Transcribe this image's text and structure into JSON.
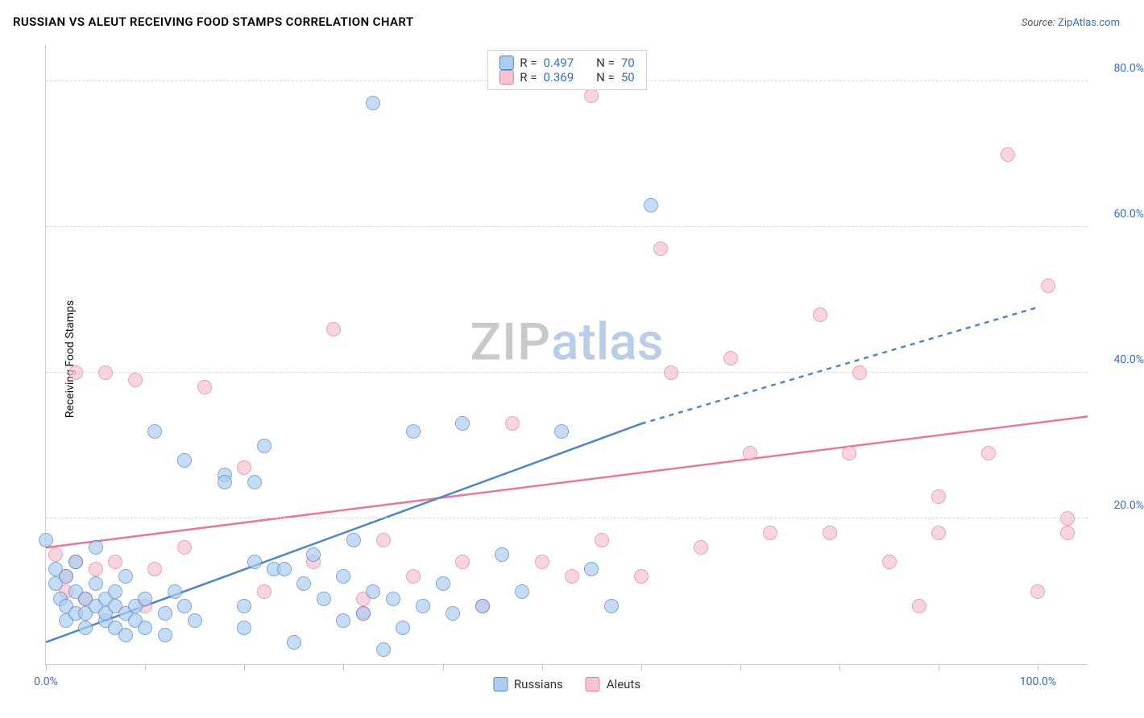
{
  "title": "RUSSIAN VS ALEUT RECEIVING FOOD STAMPS CORRELATION CHART",
  "source": {
    "label": "Source:",
    "value": "ZipAtlas.com"
  },
  "ylabel": "Receiving Food Stamps",
  "watermark": {
    "a": "ZIP",
    "b": "atlas"
  },
  "chart": {
    "type": "scatter",
    "xlim": [
      0,
      105
    ],
    "ylim": [
      0,
      85
    ],
    "xticks_major": [
      0,
      100
    ],
    "xtick_labels": [
      "0.0%",
      "100.0%"
    ],
    "xticks_minor": [
      10,
      20,
      30,
      40,
      50,
      60,
      70,
      80,
      90
    ],
    "yticks": [
      20,
      40,
      60,
      80
    ],
    "ytick_labels": [
      "20.0%",
      "40.0%",
      "60.0%",
      "80.0%"
    ],
    "grid_color": "#d9d9d9",
    "axis_color": "#cfcfcf",
    "tick_label_color": "#3a6fb7",
    "background_color": "#ffffff",
    "marker_radius": 9,
    "marker_stroke_width": 1.5,
    "marker_fill_opacity": 0.35,
    "trend_line_width": 2.5,
    "series": {
      "russians": {
        "label": "Russians",
        "color_stroke": "#4f86c6",
        "color_fill": "#aecdf0",
        "R": "0.497",
        "N": "70",
        "trend": {
          "x1": 0,
          "y1": 3,
          "x2": 60,
          "y2": 33,
          "dash_from_x": 60,
          "dash_to_x": 100,
          "dash_to_y": 49
        },
        "points": [
          [
            0,
            17
          ],
          [
            1,
            13
          ],
          [
            1,
            11
          ],
          [
            1.5,
            9
          ],
          [
            2,
            8
          ],
          [
            2,
            12
          ],
          [
            2,
            6
          ],
          [
            3,
            14
          ],
          [
            3,
            7
          ],
          [
            3,
            10
          ],
          [
            4,
            9
          ],
          [
            4,
            5
          ],
          [
            4,
            7
          ],
          [
            5,
            8
          ],
          [
            5,
            11
          ],
          [
            5,
            16
          ],
          [
            6,
            6
          ],
          [
            6,
            9
          ],
          [
            6,
            7
          ],
          [
            7,
            8
          ],
          [
            7,
            5
          ],
          [
            7,
            10
          ],
          [
            8,
            4
          ],
          [
            8,
            7
          ],
          [
            8,
            12
          ],
          [
            9,
            8
          ],
          [
            9,
            6
          ],
          [
            10,
            5
          ],
          [
            10,
            9
          ],
          [
            11,
            32
          ],
          [
            12,
            7
          ],
          [
            12,
            4
          ],
          [
            13,
            10
          ],
          [
            14,
            8
          ],
          [
            15,
            6
          ],
          [
            14,
            28
          ],
          [
            18,
            26
          ],
          [
            18,
            25
          ],
          [
            20,
            8
          ],
          [
            20,
            5
          ],
          [
            21,
            14
          ],
          [
            21,
            25
          ],
          [
            22,
            30
          ],
          [
            23,
            13
          ],
          [
            24,
            13
          ],
          [
            25,
            3
          ],
          [
            26,
            11
          ],
          [
            27,
            15
          ],
          [
            28,
            9
          ],
          [
            30,
            6
          ],
          [
            30,
            12
          ],
          [
            31,
            17
          ],
          [
            32,
            7
          ],
          [
            33,
            10
          ],
          [
            34,
            2
          ],
          [
            35,
            9
          ],
          [
            36,
            5
          ],
          [
            37,
            32
          ],
          [
            38,
            8
          ],
          [
            33,
            77
          ],
          [
            40,
            11
          ],
          [
            41,
            7
          ],
          [
            42,
            33
          ],
          [
            44,
            8
          ],
          [
            46,
            15
          ],
          [
            48,
            10
          ],
          [
            52,
            32
          ],
          [
            55,
            13
          ],
          [
            57,
            8
          ],
          [
            61,
            63
          ]
        ]
      },
      "aleuts": {
        "label": "Aleuts",
        "color_stroke": "#e67a9b",
        "color_fill": "#f4c4d2",
        "R": "0.369",
        "N": "50",
        "trend": {
          "x1": 0,
          "y1": 16,
          "x2": 105,
          "y2": 34
        },
        "points": [
          [
            1,
            15
          ],
          [
            2,
            12
          ],
          [
            2,
            10
          ],
          [
            3,
            14
          ],
          [
            3,
            40
          ],
          [
            4,
            9
          ],
          [
            5,
            13
          ],
          [
            6,
            40
          ],
          [
            7,
            14
          ],
          [
            9,
            39
          ],
          [
            10,
            8
          ],
          [
            11,
            13
          ],
          [
            14,
            16
          ],
          [
            16,
            38
          ],
          [
            20,
            27
          ],
          [
            22,
            10
          ],
          [
            27,
            14
          ],
          [
            29,
            46
          ],
          [
            32,
            9
          ],
          [
            34,
            17
          ],
          [
            37,
            12
          ],
          [
            42,
            14
          ],
          [
            44,
            8
          ],
          [
            47,
            33
          ],
          [
            50,
            14
          ],
          [
            53,
            12
          ],
          [
            55,
            78
          ],
          [
            56,
            17
          ],
          [
            60,
            12
          ],
          [
            62,
            57
          ],
          [
            63,
            40
          ],
          [
            66,
            16
          ],
          [
            69,
            42
          ],
          [
            71,
            29
          ],
          [
            73,
            18
          ],
          [
            78,
            48
          ],
          [
            79,
            18
          ],
          [
            81,
            29
          ],
          [
            82,
            40
          ],
          [
            85,
            14
          ],
          [
            88,
            8
          ],
          [
            90,
            23
          ],
          [
            90,
            18
          ],
          [
            95,
            29
          ],
          [
            97,
            70
          ],
          [
            100,
            10
          ],
          [
            101,
            52
          ],
          [
            103,
            18
          ],
          [
            103,
            20
          ],
          [
            32,
            7
          ]
        ]
      }
    },
    "legend_top": [
      {
        "swatch": "russians",
        "text_prefix": "R =",
        "r_key": "series.russians.R",
        "n_prefix": "N =",
        "n_key": "series.russians.N"
      },
      {
        "swatch": "aleuts",
        "text_prefix": "R =",
        "r_key": "series.aleuts.R",
        "n_prefix": "N =",
        "n_key": "series.aleuts.N"
      }
    ],
    "legend_bottom": [
      {
        "swatch": "russians",
        "label_key": "series.russians.label"
      },
      {
        "swatch": "aleuts",
        "label_key": "series.aleuts.label"
      }
    ]
  }
}
